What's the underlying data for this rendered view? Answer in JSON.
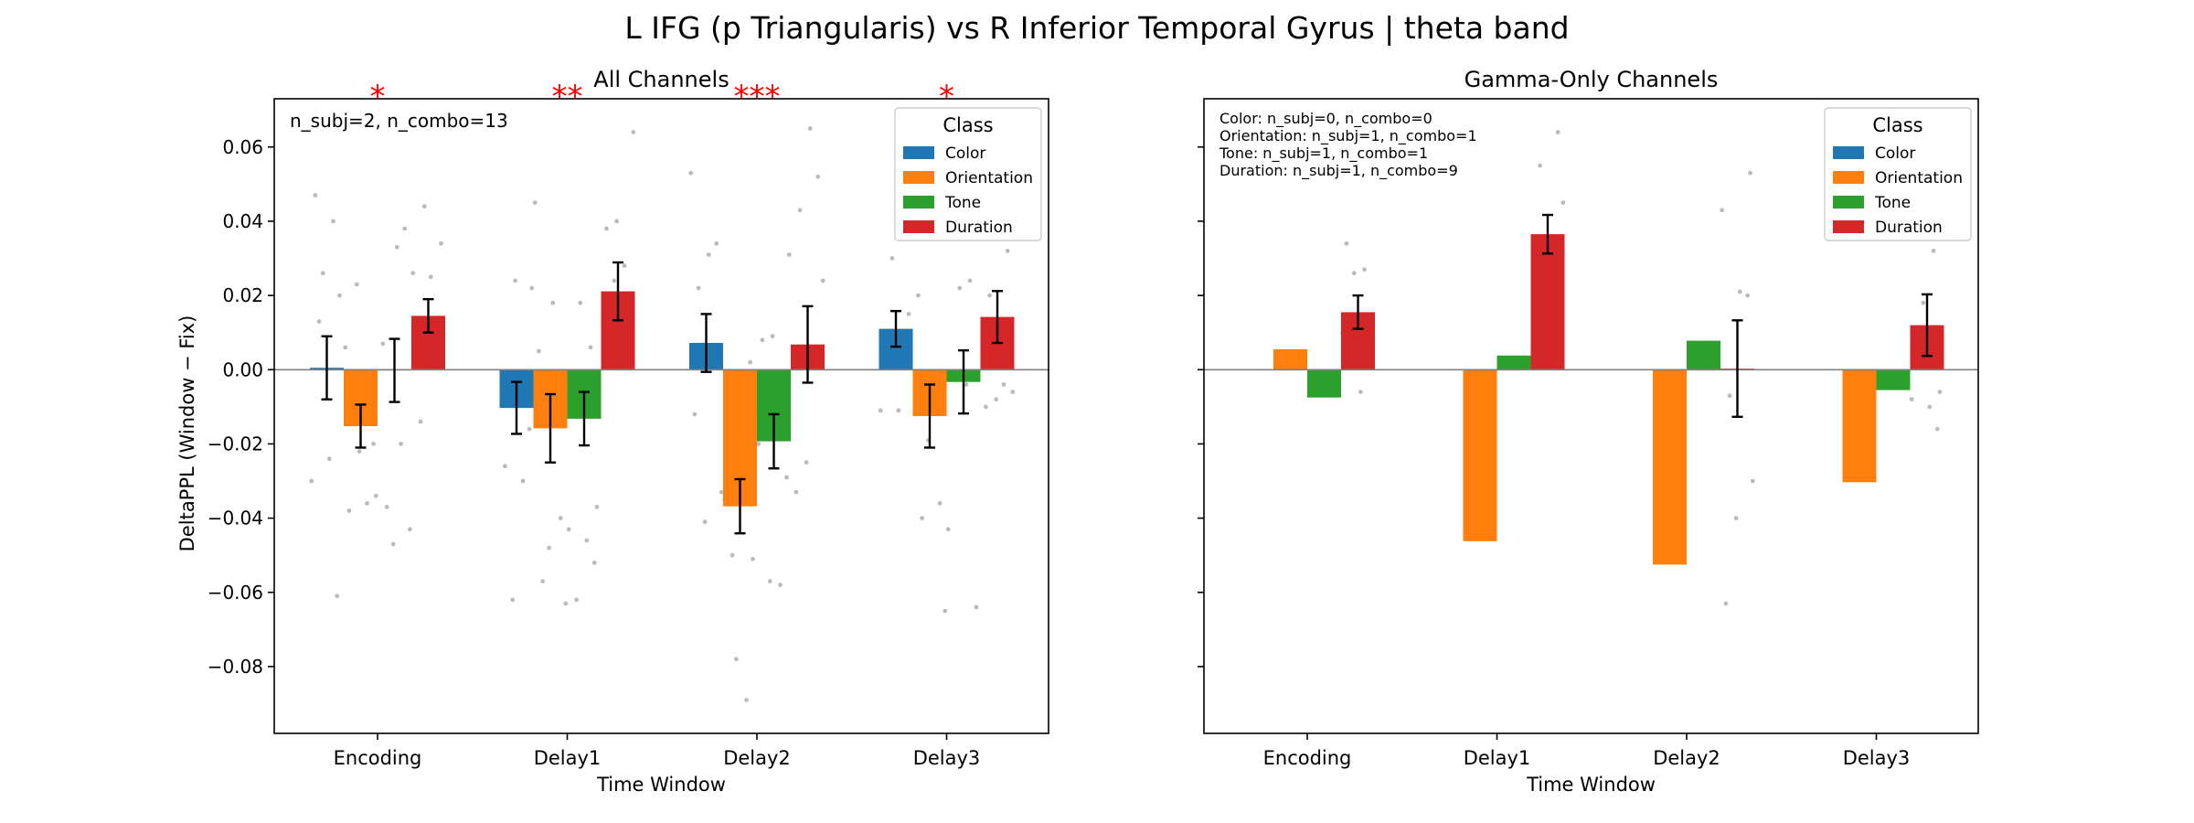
{
  "figure": {
    "title": "L IFG (p Triangularis) vs R Inferior Temporal Gyrus  |  theta band",
    "ylabel": "DeltaPPL (Window − Fix)",
    "legend_title": "Class",
    "class_colors": {
      "Color": "#1f77b4",
      "Orientation": "#ff7f0e",
      "Tone": "#2ca02c",
      "Duration": "#d62728"
    },
    "significance_color": "#ff0000",
    "scatter_color": "#bbbbbb"
  },
  "chart_data": [
    {
      "type": "bar",
      "title": "All Channels",
      "xlabel": "Time Window",
      "ylabel": "DeltaPPL (Window − Fix)",
      "ylim": [
        -0.098,
        0.073
      ],
      "yticks": [
        "0.06",
        "0.04",
        "0.02",
        "0.00",
        "−0.02",
        "−0.04",
        "−0.06",
        "−0.08"
      ],
      "ytick_values": [
        0.06,
        0.04,
        0.02,
        0.0,
        -0.02,
        -0.04,
        -0.06,
        -0.08
      ],
      "categories": [
        "Encoding",
        "Delay1",
        "Delay2",
        "Delay3"
      ],
      "legend_placement": "top-right",
      "annotation": "n_subj=2, n_combo=13",
      "significance": [
        "*",
        "**",
        "***",
        "*"
      ],
      "series": [
        {
          "name": "Color",
          "values": [
            0.0005,
            -0.0103,
            0.0072,
            0.011
          ],
          "errors": [
            0.0085,
            0.007,
            0.0078,
            0.0048
          ]
        },
        {
          "name": "Orientation",
          "values": [
            -0.0152,
            -0.0158,
            -0.0368,
            -0.0125
          ],
          "errors": [
            0.0058,
            0.0092,
            0.0073,
            0.0085
          ]
        },
        {
          "name": "Tone",
          "values": [
            -0.0002,
            -0.0132,
            -0.0193,
            -0.0033
          ],
          "errors": [
            0.0085,
            0.0072,
            0.0073,
            0.0085
          ]
        },
        {
          "name": "Duration",
          "values": [
            0.0145,
            0.0211,
            0.0068,
            0.0142
          ],
          "errors": [
            0.0045,
            0.0078,
            0.0103,
            0.007
          ]
        }
      ],
      "points": [
        {
          "x": 0,
          "s": 0,
          "y": 0.047
        },
        {
          "x": 0,
          "s": 0,
          "y": 0.04
        },
        {
          "x": 0,
          "s": 0,
          "y": 0.026
        },
        {
          "x": 0,
          "s": 0,
          "y": 0.02
        },
        {
          "x": 0,
          "s": 0,
          "y": -0.03
        },
        {
          "x": 0,
          "s": 0,
          "y": -0.024
        },
        {
          "x": 0,
          "s": 0,
          "y": -0.061
        },
        {
          "x": 0,
          "s": 0,
          "y": 0.013
        },
        {
          "x": 0,
          "s": 1,
          "y": -0.034
        },
        {
          "x": 0,
          "s": 1,
          "y": -0.022
        },
        {
          "x": 0,
          "s": 1,
          "y": -0.038
        },
        {
          "x": 0,
          "s": 1,
          "y": -0.036
        },
        {
          "x": 0,
          "s": 1,
          "y": 0.023
        },
        {
          "x": 0,
          "s": 1,
          "y": -0.02
        },
        {
          "x": 0,
          "s": 1,
          "y": 0.006
        },
        {
          "x": 0,
          "s": 2,
          "y": 0.033
        },
        {
          "x": 0,
          "s": 2,
          "y": 0.038
        },
        {
          "x": 0,
          "s": 2,
          "y": -0.037
        },
        {
          "x": 0,
          "s": 2,
          "y": -0.043
        },
        {
          "x": 0,
          "s": 2,
          "y": -0.047
        },
        {
          "x": 0,
          "s": 2,
          "y": 0.007
        },
        {
          "x": 0,
          "s": 2,
          "y": -0.02
        },
        {
          "x": 0,
          "s": 3,
          "y": 0.044
        },
        {
          "x": 0,
          "s": 3,
          "y": 0.034
        },
        {
          "x": 0,
          "s": 3,
          "y": 0.026
        },
        {
          "x": 0,
          "s": 3,
          "y": 0.025
        },
        {
          "x": 0,
          "s": 3,
          "y": 0.005
        },
        {
          "x": 0,
          "s": 3,
          "y": -0.014
        },
        {
          "x": 1,
          "s": 0,
          "y": 0.022
        },
        {
          "x": 1,
          "s": 0,
          "y": 0.024
        },
        {
          "x": 1,
          "s": 0,
          "y": -0.026
        },
        {
          "x": 1,
          "s": 0,
          "y": -0.03
        },
        {
          "x": 1,
          "s": 0,
          "y": -0.062
        },
        {
          "x": 1,
          "s": 0,
          "y": -0.016
        },
        {
          "x": 1,
          "s": 1,
          "y": 0.045
        },
        {
          "x": 1,
          "s": 1,
          "y": 0.018
        },
        {
          "x": 1,
          "s": 1,
          "y": -0.04
        },
        {
          "x": 1,
          "s": 1,
          "y": -0.057
        },
        {
          "x": 1,
          "s": 1,
          "y": -0.063
        },
        {
          "x": 1,
          "s": 1,
          "y": -0.048
        },
        {
          "x": 1,
          "s": 1,
          "y": 0.005
        },
        {
          "x": 1,
          "s": 2,
          "y": 0.006
        },
        {
          "x": 1,
          "s": 2,
          "y": 0.018
        },
        {
          "x": 1,
          "s": 2,
          "y": -0.037
        },
        {
          "x": 1,
          "s": 2,
          "y": -0.043
        },
        {
          "x": 1,
          "s": 2,
          "y": -0.046
        },
        {
          "x": 1,
          "s": 2,
          "y": -0.052
        },
        {
          "x": 1,
          "s": 2,
          "y": -0.062
        },
        {
          "x": 1,
          "s": 3,
          "y": 0.064
        },
        {
          "x": 1,
          "s": 3,
          "y": 0.04
        },
        {
          "x": 1,
          "s": 3,
          "y": 0.038
        },
        {
          "x": 1,
          "s": 3,
          "y": 0.028
        },
        {
          "x": 1,
          "s": 3,
          "y": 0.024
        },
        {
          "x": 1,
          "s": 3,
          "y": 0.012
        },
        {
          "x": 2,
          "s": 0,
          "y": 0.053
        },
        {
          "x": 2,
          "s": 0,
          "y": 0.031
        },
        {
          "x": 2,
          "s": 0,
          "y": 0.034
        },
        {
          "x": 2,
          "s": 0,
          "y": 0.022
        },
        {
          "x": 2,
          "s": 0,
          "y": -0.033
        },
        {
          "x": 2,
          "s": 0,
          "y": -0.041
        },
        {
          "x": 2,
          "s": 0,
          "y": -0.012
        },
        {
          "x": 2,
          "s": 1,
          "y": -0.089
        },
        {
          "x": 2,
          "s": 1,
          "y": -0.078
        },
        {
          "x": 2,
          "s": 1,
          "y": -0.051
        },
        {
          "x": 2,
          "s": 1,
          "y": -0.035
        },
        {
          "x": 2,
          "s": 1,
          "y": -0.022
        },
        {
          "x": 2,
          "s": 1,
          "y": 0.002
        },
        {
          "x": 2,
          "s": 1,
          "y": -0.05
        },
        {
          "x": 2,
          "s": 2,
          "y": 0.031
        },
        {
          "x": 2,
          "s": 2,
          "y": 0.009
        },
        {
          "x": 2,
          "s": 2,
          "y": 0.008
        },
        {
          "x": 2,
          "s": 2,
          "y": -0.058
        },
        {
          "x": 2,
          "s": 2,
          "y": -0.057
        },
        {
          "x": 2,
          "s": 2,
          "y": -0.029
        },
        {
          "x": 2,
          "s": 2,
          "y": -0.02
        },
        {
          "x": 2,
          "s": 3,
          "y": 0.065
        },
        {
          "x": 2,
          "s": 3,
          "y": 0.052
        },
        {
          "x": 2,
          "s": 3,
          "y": 0.043
        },
        {
          "x": 2,
          "s": 3,
          "y": 0.024
        },
        {
          "x": 2,
          "s": 3,
          "y": -0.025
        },
        {
          "x": 2,
          "s": 3,
          "y": -0.033
        },
        {
          "x": 3,
          "s": 0,
          "y": 0.037
        },
        {
          "x": 3,
          "s": 0,
          "y": 0.03
        },
        {
          "x": 3,
          "s": 0,
          "y": 0.015
        },
        {
          "x": 3,
          "s": 0,
          "y": -0.011
        },
        {
          "x": 3,
          "s": 0,
          "y": -0.011
        },
        {
          "x": 3,
          "s": 1,
          "y": -0.036
        },
        {
          "x": 3,
          "s": 1,
          "y": -0.04
        },
        {
          "x": 3,
          "s": 1,
          "y": -0.065
        },
        {
          "x": 3,
          "s": 1,
          "y": -0.019
        },
        {
          "x": 3,
          "s": 1,
          "y": 0.02
        },
        {
          "x": 3,
          "s": 2,
          "y": 0.024
        },
        {
          "x": 3,
          "s": 2,
          "y": 0.022
        },
        {
          "x": 3,
          "s": 2,
          "y": -0.064
        },
        {
          "x": 3,
          "s": 2,
          "y": -0.043
        },
        {
          "x": 3,
          "s": 2,
          "y": -0.004
        },
        {
          "x": 3,
          "s": 3,
          "y": 0.032
        },
        {
          "x": 3,
          "s": 3,
          "y": 0.02
        },
        {
          "x": 3,
          "s": 3,
          "y": -0.006
        },
        {
          "x": 3,
          "s": 3,
          "y": -0.008
        },
        {
          "x": 3,
          "s": 3,
          "y": -0.01
        },
        {
          "x": 3,
          "s": 3,
          "y": -0.004
        }
      ]
    },
    {
      "type": "bar",
      "title": "Gamma-Only Channels",
      "xlabel": "Time Window",
      "ylim": [
        -0.098,
        0.073
      ],
      "categories": [
        "Encoding",
        "Delay1",
        "Delay2",
        "Delay3"
      ],
      "legend_placement": "top-right",
      "annotation_lines": [
        "Color: n_subj=0, n_combo=0",
        "Orientation: n_subj=1, n_combo=1",
        "Tone: n_subj=1, n_combo=1",
        "Duration: n_subj=1, n_combo=9"
      ],
      "series": [
        {
          "name": "Color",
          "values": [
            null,
            null,
            null,
            null
          ],
          "errors": [
            null,
            null,
            null,
            null
          ]
        },
        {
          "name": "Orientation",
          "values": [
            0.0055,
            -0.0462,
            -0.0525,
            -0.0303
          ],
          "errors": [
            null,
            null,
            null,
            null
          ]
        },
        {
          "name": "Tone",
          "values": [
            -0.0075,
            0.0038,
            0.0078,
            -0.0055
          ],
          "errors": [
            null,
            null,
            null,
            null
          ]
        },
        {
          "name": "Duration",
          "values": [
            0.0155,
            0.0365,
            0.0003,
            0.012
          ],
          "errors": [
            0.0045,
            0.0052,
            0.013,
            0.0083
          ]
        }
      ],
      "points": [
        {
          "x": 0,
          "s": 3,
          "y": 0.034
        },
        {
          "x": 0,
          "s": 3,
          "y": 0.027
        },
        {
          "x": 0,
          "s": 3,
          "y": 0.026
        },
        {
          "x": 0,
          "s": 3,
          "y": 0.013
        },
        {
          "x": 0,
          "s": 3,
          "y": 0.01
        },
        {
          "x": 0,
          "s": 3,
          "y": -0.006
        },
        {
          "x": 1,
          "s": 3,
          "y": 0.064
        },
        {
          "x": 1,
          "s": 3,
          "y": 0.055
        },
        {
          "x": 1,
          "s": 3,
          "y": 0.045
        },
        {
          "x": 1,
          "s": 3,
          "y": 0.03
        },
        {
          "x": 1,
          "s": 3,
          "y": 0.025
        },
        {
          "x": 1,
          "s": 3,
          "y": 0.018
        },
        {
          "x": 1,
          "s": 3,
          "y": 0.023
        },
        {
          "x": 2,
          "s": 3,
          "y": 0.053
        },
        {
          "x": 2,
          "s": 3,
          "y": 0.043
        },
        {
          "x": 2,
          "s": 3,
          "y": 0.021
        },
        {
          "x": 2,
          "s": 3,
          "y": 0.02
        },
        {
          "x": 2,
          "s": 3,
          "y": -0.007
        },
        {
          "x": 2,
          "s": 3,
          "y": -0.03
        },
        {
          "x": 2,
          "s": 3,
          "y": -0.04
        },
        {
          "x": 2,
          "s": 3,
          "y": -0.063
        },
        {
          "x": 3,
          "s": 3,
          "y": 0.032
        },
        {
          "x": 3,
          "s": 3,
          "y": 0.018
        },
        {
          "x": 3,
          "s": 3,
          "y": -0.006
        },
        {
          "x": 3,
          "s": 3,
          "y": -0.008
        },
        {
          "x": 3,
          "s": 3,
          "y": -0.01
        },
        {
          "x": 3,
          "s": 3,
          "y": -0.016
        }
      ]
    }
  ]
}
